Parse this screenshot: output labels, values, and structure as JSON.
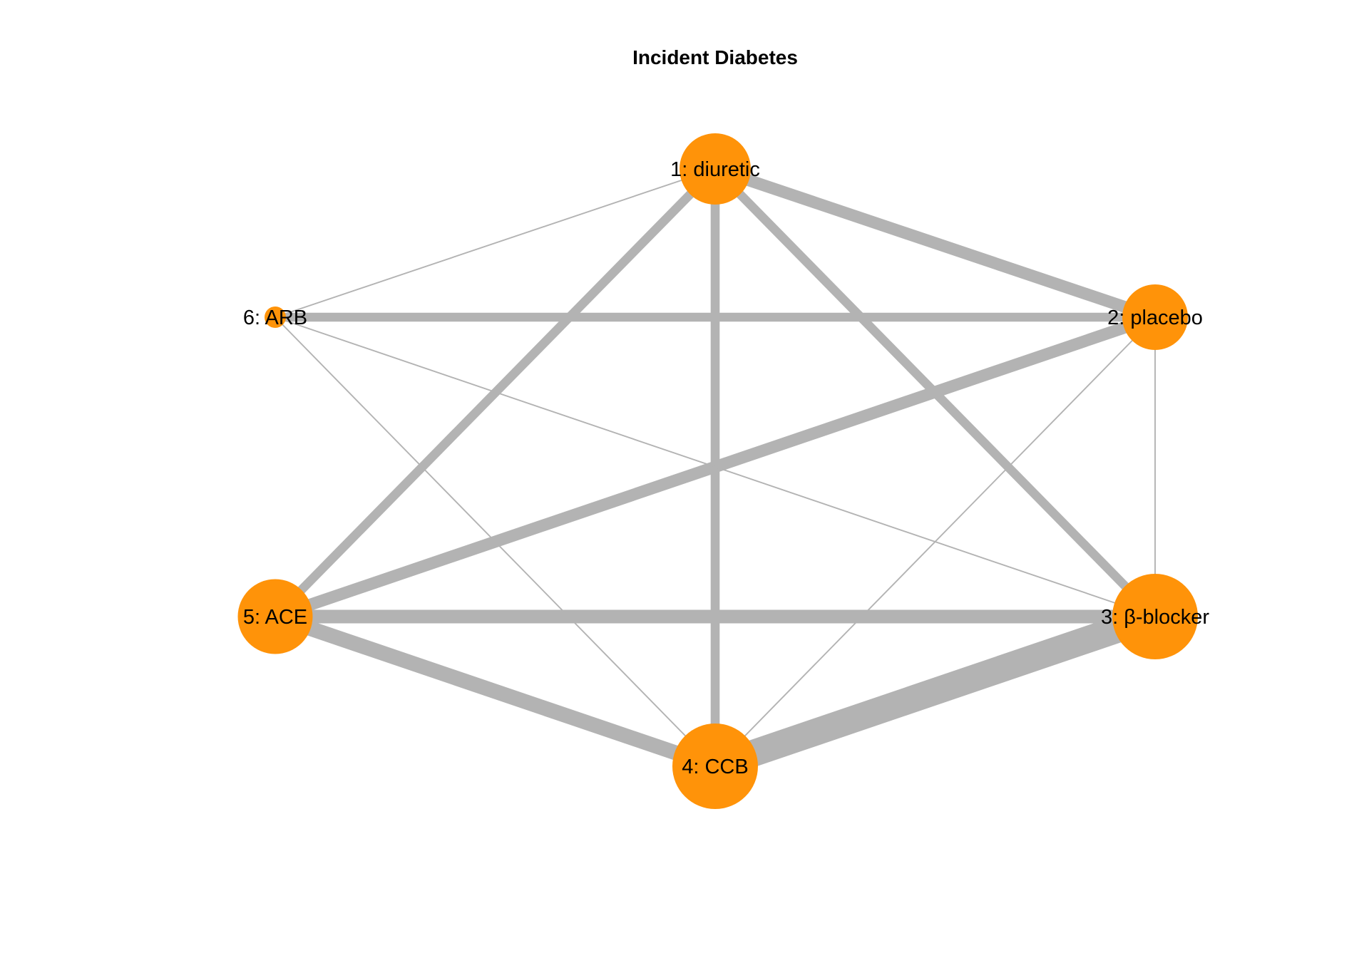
{
  "title": "Incident Diabetes",
  "colors": {
    "node": "#FF9309",
    "edge": "#B3B3B3",
    "label": "#000000",
    "background": "#FFFFFF"
  },
  "nodes": [
    {
      "id": 1,
      "label": "1: diuretic",
      "weight": 1.0
    },
    {
      "id": 2,
      "label": "2: placebo",
      "weight": 0.92
    },
    {
      "id": 3,
      "label": "3: β-blocker",
      "weight": 1.2
    },
    {
      "id": 4,
      "label": "4: CCB",
      "weight": 1.2
    },
    {
      "id": 5,
      "label": "5: ACE",
      "weight": 1.05
    },
    {
      "id": 6,
      "label": "6: ARB",
      "weight": 0.3
    }
  ],
  "edges": [
    {
      "from": 1,
      "to": 2,
      "weight": 4
    },
    {
      "from": 1,
      "to": 3,
      "weight": 3
    },
    {
      "from": 1,
      "to": 4,
      "weight": 3
    },
    {
      "from": 1,
      "to": 5,
      "weight": 3
    },
    {
      "from": 1,
      "to": 6,
      "weight": 1
    },
    {
      "from": 2,
      "to": 3,
      "weight": 1
    },
    {
      "from": 2,
      "to": 4,
      "weight": 1
    },
    {
      "from": 2,
      "to": 5,
      "weight": 4
    },
    {
      "from": 2,
      "to": 6,
      "weight": 3
    },
    {
      "from": 3,
      "to": 4,
      "weight": 9
    },
    {
      "from": 3,
      "to": 5,
      "weight": 4.5
    },
    {
      "from": 3,
      "to": 6,
      "weight": 1
    },
    {
      "from": 4,
      "to": 5,
      "weight": 5
    },
    {
      "from": 4,
      "to": 6,
      "weight": 1
    }
  ]
}
